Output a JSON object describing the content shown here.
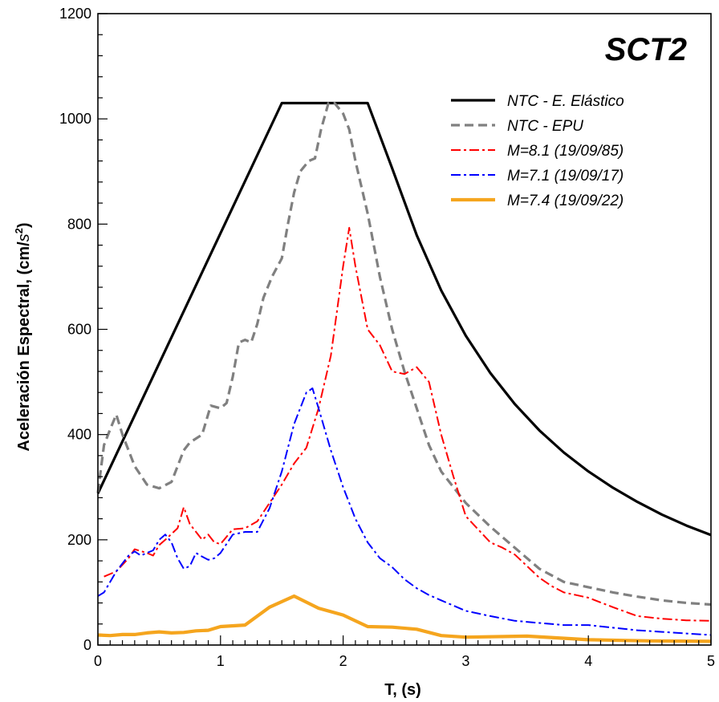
{
  "chart_data": {
    "type": "line",
    "title": "SCT2",
    "xlabel": "T, (s)",
    "ylabel_main": "Aceleración Espectral, (cm/",
    "ylabel_unit": "s",
    "ylabel_exp": "2",
    "ylabel_tail": ")",
    "xlim": [
      0,
      5
    ],
    "ylim": [
      0,
      1200
    ],
    "x_ticks": [
      0,
      1,
      2,
      3,
      4,
      5
    ],
    "x_tick_labels": [
      "0",
      "1",
      "2",
      "3",
      "4",
      "5"
    ],
    "y_ticks": [
      0,
      200,
      400,
      600,
      800,
      1000,
      1200
    ],
    "y_tick_labels": [
      "0",
      "200",
      "400",
      "600",
      "800",
      "1000",
      "1200"
    ],
    "grid": false,
    "legend_position": "top-right",
    "series": [
      {
        "name": "NTC - E. Elástico",
        "color": "#000000",
        "style": "solid",
        "points": [
          [
            0,
            288
          ],
          [
            1.5,
            1030
          ],
          [
            2.2,
            1030
          ],
          [
            2.4,
            906
          ],
          [
            2.6,
            779
          ],
          [
            2.8,
            674
          ],
          [
            3.0,
            588
          ],
          [
            3.2,
            517
          ],
          [
            3.4,
            458
          ],
          [
            3.6,
            408
          ],
          [
            3.8,
            366
          ],
          [
            4.0,
            330
          ],
          [
            4.2,
            299
          ],
          [
            4.4,
            272
          ],
          [
            4.6,
            248
          ],
          [
            4.8,
            227
          ],
          [
            5.0,
            209
          ]
        ]
      },
      {
        "name": "NTC - EPU",
        "color": "#808080",
        "style": "dashed",
        "points": [
          [
            0,
            290
          ],
          [
            0.05,
            380
          ],
          [
            0.1,
            410
          ],
          [
            0.15,
            438
          ],
          [
            0.2,
            400
          ],
          [
            0.3,
            340
          ],
          [
            0.4,
            305
          ],
          [
            0.5,
            298
          ],
          [
            0.6,
            310
          ],
          [
            0.7,
            370
          ],
          [
            0.75,
            385
          ],
          [
            0.85,
            400
          ],
          [
            0.92,
            455
          ],
          [
            1.0,
            450
          ],
          [
            1.05,
            460
          ],
          [
            1.1,
            510
          ],
          [
            1.15,
            575
          ],
          [
            1.2,
            580
          ],
          [
            1.25,
            575
          ],
          [
            1.3,
            610
          ],
          [
            1.35,
            660
          ],
          [
            1.42,
            700
          ],
          [
            1.5,
            735
          ],
          [
            1.55,
            800
          ],
          [
            1.6,
            860
          ],
          [
            1.65,
            900
          ],
          [
            1.72,
            920
          ],
          [
            1.77,
            925
          ],
          [
            1.82,
            980
          ],
          [
            1.88,
            1030
          ],
          [
            1.93,
            1030
          ],
          [
            2.0,
            1010
          ],
          [
            2.05,
            980
          ],
          [
            2.1,
            920
          ],
          [
            2.2,
            820
          ],
          [
            2.3,
            700
          ],
          [
            2.4,
            600
          ],
          [
            2.5,
            520
          ],
          [
            2.6,
            450
          ],
          [
            2.7,
            380
          ],
          [
            2.8,
            330
          ],
          [
            2.9,
            300
          ],
          [
            3.0,
            270
          ],
          [
            3.2,
            225
          ],
          [
            3.4,
            185
          ],
          [
            3.6,
            145
          ],
          [
            3.8,
            120
          ],
          [
            4.0,
            110
          ],
          [
            4.2,
            100
          ],
          [
            4.4,
            92
          ],
          [
            4.6,
            85
          ],
          [
            4.8,
            80
          ],
          [
            5.0,
            77
          ]
        ]
      },
      {
        "name": "M=8.1 (19/09/85)",
        "color": "#ff0000",
        "style": "dashdot",
        "points": [
          [
            0.05,
            130
          ],
          [
            0.15,
            140
          ],
          [
            0.25,
            165
          ],
          [
            0.3,
            182
          ],
          [
            0.4,
            175
          ],
          [
            0.45,
            170
          ],
          [
            0.5,
            190
          ],
          [
            0.55,
            200
          ],
          [
            0.65,
            222
          ],
          [
            0.7,
            262
          ],
          [
            0.75,
            230
          ],
          [
            0.85,
            200
          ],
          [
            0.9,
            210
          ],
          [
            0.95,
            195
          ],
          [
            1.0,
            192
          ],
          [
            1.1,
            220
          ],
          [
            1.2,
            222
          ],
          [
            1.3,
            235
          ],
          [
            1.4,
            270
          ],
          [
            1.5,
            305
          ],
          [
            1.6,
            345
          ],
          [
            1.7,
            375
          ],
          [
            1.8,
            450
          ],
          [
            1.9,
            550
          ],
          [
            2.0,
            720
          ],
          [
            2.05,
            793
          ],
          [
            2.1,
            720
          ],
          [
            2.2,
            600
          ],
          [
            2.3,
            570
          ],
          [
            2.4,
            520
          ],
          [
            2.5,
            515
          ],
          [
            2.6,
            528
          ],
          [
            2.7,
            500
          ],
          [
            2.8,
            400
          ],
          [
            2.9,
            320
          ],
          [
            3.0,
            245
          ],
          [
            3.1,
            220
          ],
          [
            3.2,
            195
          ],
          [
            3.3,
            185
          ],
          [
            3.4,
            172
          ],
          [
            3.5,
            150
          ],
          [
            3.6,
            128
          ],
          [
            3.7,
            112
          ],
          [
            3.8,
            100
          ],
          [
            3.9,
            95
          ],
          [
            4.0,
            90
          ],
          [
            4.2,
            72
          ],
          [
            4.4,
            55
          ],
          [
            4.6,
            50
          ],
          [
            4.8,
            47
          ],
          [
            5.0,
            46
          ]
        ]
      },
      {
        "name": "M=7.1 (19/09/17)",
        "color": "#0000ff",
        "style": "dashdot",
        "points": [
          [
            0.0,
            93
          ],
          [
            0.05,
            100
          ],
          [
            0.15,
            140
          ],
          [
            0.25,
            170
          ],
          [
            0.3,
            178
          ],
          [
            0.35,
            170
          ],
          [
            0.4,
            175
          ],
          [
            0.45,
            180
          ],
          [
            0.5,
            200
          ],
          [
            0.55,
            210
          ],
          [
            0.6,
            195
          ],
          [
            0.65,
            165
          ],
          [
            0.7,
            145
          ],
          [
            0.75,
            150
          ],
          [
            0.8,
            175
          ],
          [
            0.85,
            168
          ],
          [
            0.9,
            162
          ],
          [
            0.95,
            165
          ],
          [
            1.0,
            175
          ],
          [
            1.1,
            210
          ],
          [
            1.2,
            215
          ],
          [
            1.3,
            215
          ],
          [
            1.4,
            260
          ],
          [
            1.5,
            330
          ],
          [
            1.6,
            420
          ],
          [
            1.7,
            480
          ],
          [
            1.75,
            488
          ],
          [
            1.8,
            450
          ],
          [
            1.9,
            370
          ],
          [
            2.0,
            300
          ],
          [
            2.1,
            240
          ],
          [
            2.2,
            195
          ],
          [
            2.3,
            165
          ],
          [
            2.4,
            148
          ],
          [
            2.5,
            125
          ],
          [
            2.6,
            108
          ],
          [
            2.7,
            95
          ],
          [
            2.8,
            85
          ],
          [
            3.0,
            65
          ],
          [
            3.2,
            55
          ],
          [
            3.4,
            46
          ],
          [
            3.6,
            42
          ],
          [
            3.8,
            38
          ],
          [
            4.0,
            38
          ],
          [
            4.2,
            33
          ],
          [
            4.4,
            28
          ],
          [
            4.6,
            25
          ],
          [
            4.8,
            22
          ],
          [
            5.0,
            19
          ]
        ]
      },
      {
        "name": "M=7.4 (19/09/22)",
        "color": "#f5a51e",
        "style": "thick",
        "points": [
          [
            0,
            19
          ],
          [
            0.1,
            18
          ],
          [
            0.2,
            20
          ],
          [
            0.3,
            20
          ],
          [
            0.4,
            23
          ],
          [
            0.5,
            25
          ],
          [
            0.6,
            23
          ],
          [
            0.7,
            24
          ],
          [
            0.8,
            27
          ],
          [
            0.9,
            28
          ],
          [
            1.0,
            35
          ],
          [
            1.2,
            38
          ],
          [
            1.4,
            72
          ],
          [
            1.6,
            93
          ],
          [
            1.8,
            70
          ],
          [
            2.0,
            57
          ],
          [
            2.2,
            35
          ],
          [
            2.4,
            34
          ],
          [
            2.6,
            30
          ],
          [
            2.8,
            18
          ],
          [
            3.0,
            15
          ],
          [
            3.5,
            17
          ],
          [
            4.0,
            10
          ],
          [
            4.5,
            8
          ],
          [
            5.0,
            7
          ]
        ]
      }
    ]
  }
}
